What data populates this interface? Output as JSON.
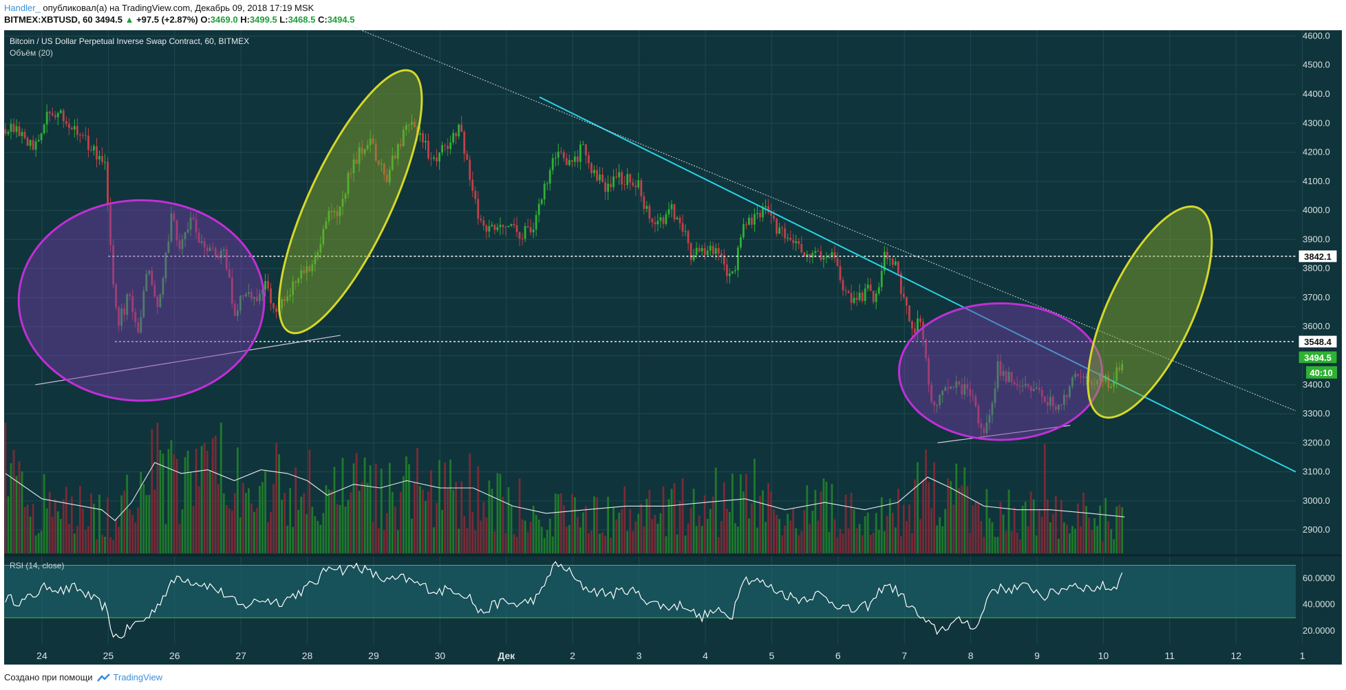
{
  "header": {
    "author": "Handler_",
    "published": "опубликовал(а) на TradingView.com, Декабрь 09, 2018 17:19 MSK",
    "symbol": "BITMEX:XBTUSD, 60",
    "last": "3494.5",
    "change_arrow": "▲",
    "change": "+97.5 (+2.87%)",
    "o_label": "O:",
    "o": "3469.0",
    "h_label": "H:",
    "h": "3499.5",
    "l_label": "L:",
    "l": "3468.5",
    "c_label": "C:",
    "c": "3494.5"
  },
  "footer": {
    "created_with": "Создано при помощи",
    "brand": "TradingView"
  },
  "colors": {
    "background": "#10343b",
    "grid": "#1d4a52",
    "up": "#2fb134",
    "down": "#c2404a",
    "trend_cyan": "#2ad4e8",
    "ellipse_purple": "#c12fd6",
    "ellipse_yellow": "#d6d82a",
    "rsi_band": "#1e6a73"
  },
  "chart_data": [
    {
      "type": "candlestick",
      "title": "Bitcoin / US Dollar Perpetual Inverse Swap Contract, 60, BITMEX",
      "volume_label": "Объём (20)",
      "x_ticks": [
        "24",
        "25",
        "26",
        "27",
        "28",
        "29",
        "30",
        "Дек",
        "2",
        "3",
        "4",
        "5",
        "6",
        "7",
        "8",
        "9",
        "10",
        "11",
        "12",
        "1"
      ],
      "y_ticks": [
        2900.0,
        3000.0,
        3100.0,
        3200.0,
        3300.0,
        3400.0,
        3500.0,
        3600.0,
        3700.0,
        3800.0,
        3900.0,
        4000.0,
        4100.0,
        4200.0,
        4300.0,
        4400.0,
        4500.0,
        4600.0
      ],
      "ylim": [
        2820,
        4620
      ],
      "xlim_days": [
        -0.57,
        18.9
      ],
      "price_path": [
        [
          -0.55,
          4280
        ],
        [
          -0.3,
          4260
        ],
        [
          -0.1,
          4220
        ],
        [
          0.1,
          4330
        ],
        [
          0.3,
          4320
        ],
        [
          0.5,
          4280
        ],
        [
          0.75,
          4210
        ],
        [
          0.95,
          4150
        ],
        [
          1.05,
          3800
        ],
        [
          1.15,
          3610
        ],
        [
          1.3,
          3700
        ],
        [
          1.45,
          3590
        ],
        [
          1.6,
          3820
        ],
        [
          1.75,
          3640
        ],
        [
          1.95,
          3980
        ],
        [
          2.1,
          3870
        ],
        [
          2.25,
          3960
        ],
        [
          2.4,
          3900
        ],
        [
          2.55,
          3860
        ],
        [
          2.75,
          3850
        ],
        [
          2.9,
          3640
        ],
        [
          3.05,
          3720
        ],
        [
          3.2,
          3680
        ],
        [
          3.35,
          3760
        ],
        [
          3.5,
          3670
        ],
        [
          3.7,
          3700
        ],
        [
          3.85,
          3760
        ],
        [
          4.0,
          3800
        ],
        [
          4.15,
          3860
        ],
        [
          4.3,
          4000
        ],
        [
          4.45,
          3980
        ],
        [
          4.6,
          4100
        ],
        [
          4.75,
          4180
        ],
        [
          4.9,
          4250
        ],
        [
          5.05,
          4180
        ],
        [
          5.2,
          4120
        ],
        [
          5.35,
          4200
        ],
        [
          5.55,
          4310
        ],
        [
          5.75,
          4240
        ],
        [
          5.9,
          4160
        ],
        [
          6.1,
          4230
        ],
        [
          6.3,
          4280
        ],
        [
          6.45,
          4120
        ],
        [
          6.6,
          3960
        ],
        [
          6.8,
          3940
        ],
        [
          7.0,
          3960
        ],
        [
          7.2,
          3920
        ],
        [
          7.4,
          3940
        ],
        [
          7.6,
          4100
        ],
        [
          7.8,
          4230
        ],
        [
          7.95,
          4160
        ],
        [
          8.15,
          4210
        ],
        [
          8.3,
          4120
        ],
        [
          8.5,
          4080
        ],
        [
          8.7,
          4120
        ],
        [
          8.85,
          4100
        ],
        [
          9.0,
          4080
        ],
        [
          9.15,
          3980
        ],
        [
          9.35,
          3960
        ],
        [
          9.5,
          4000
        ],
        [
          9.65,
          3940
        ],
        [
          9.8,
          3840
        ],
        [
          9.95,
          3860
        ],
        [
          10.15,
          3860
        ],
        [
          10.3,
          3790
        ],
        [
          10.45,
          3780
        ],
        [
          10.55,
          3960
        ],
        [
          10.75,
          3970
        ],
        [
          10.9,
          4010
        ],
        [
          11.05,
          3940
        ],
        [
          11.2,
          3910
        ],
        [
          11.4,
          3880
        ],
        [
          11.55,
          3830
        ],
        [
          11.7,
          3840
        ],
        [
          11.9,
          3860
        ],
        [
          12.0,
          3780
        ],
        [
          12.15,
          3700
        ],
        [
          12.3,
          3700
        ],
        [
          12.45,
          3720
        ],
        [
          12.6,
          3700
        ],
        [
          12.7,
          3850
        ],
        [
          12.85,
          3830
        ],
        [
          12.95,
          3720
        ],
        [
          13.1,
          3590
        ],
        [
          13.25,
          3620
        ],
        [
          13.35,
          3430
        ],
        [
          13.45,
          3320
        ],
        [
          13.6,
          3380
        ],
        [
          13.8,
          3390
        ],
        [
          14.0,
          3380
        ],
        [
          14.15,
          3230
        ],
        [
          14.3,
          3300
        ],
        [
          14.4,
          3460
        ],
        [
          14.6,
          3420
        ],
        [
          14.8,
          3390
        ],
        [
          15.0,
          3390
        ],
        [
          15.15,
          3340
        ],
        [
          15.35,
          3330
        ],
        [
          15.5,
          3400
        ],
        [
          15.65,
          3430
        ],
        [
          15.85,
          3410
        ],
        [
          16.0,
          3420
        ],
        [
          16.15,
          3400
        ],
        [
          16.25,
          3470
        ],
        [
          16.32,
          3494
        ]
      ],
      "volume_scale": [
        0,
        36
      ],
      "volume_ma_path": [
        [
          -0.55,
          22
        ],
        [
          0.0,
          15
        ],
        [
          0.9,
          12
        ],
        [
          1.1,
          9
        ],
        [
          1.35,
          14
        ],
        [
          1.7,
          25
        ],
        [
          2.1,
          22
        ],
        [
          2.5,
          23
        ],
        [
          2.9,
          20
        ],
        [
          3.3,
          23
        ],
        [
          3.7,
          22
        ],
        [
          4.0,
          20
        ],
        [
          4.3,
          16
        ],
        [
          4.7,
          19
        ],
        [
          5.1,
          18
        ],
        [
          5.5,
          20
        ],
        [
          6.0,
          18
        ],
        [
          6.5,
          18
        ],
        [
          7.1,
          13
        ],
        [
          7.6,
          11
        ],
        [
          8.2,
          12
        ],
        [
          8.8,
          13
        ],
        [
          9.4,
          13
        ],
        [
          10.0,
          14
        ],
        [
          10.6,
          15
        ],
        [
          11.2,
          12
        ],
        [
          11.8,
          14
        ],
        [
          12.4,
          12
        ],
        [
          12.9,
          14
        ],
        [
          13.35,
          21
        ],
        [
          13.7,
          18
        ],
        [
          14.2,
          13
        ],
        [
          14.7,
          12
        ],
        [
          15.2,
          12
        ],
        [
          15.8,
          11
        ],
        [
          16.32,
          10
        ]
      ],
      "annotations": {
        "resistance_line": 3842.1,
        "support_line": 3548.4,
        "resistance_label": "3842.1",
        "support_label": "3548.4",
        "last_price_label": "3494.5",
        "countdown_label": "40:10",
        "trendline_cyan": [
          [
            7.5,
            4390
          ],
          [
            18.9,
            3100
          ]
        ],
        "trendline_dotted": [
          [
            4.6,
            4640
          ],
          [
            18.9,
            3310
          ]
        ],
        "support_line_left": [
          [
            -0.1,
            3400
          ],
          [
            4.5,
            3570
          ]
        ],
        "support_line_right": [
          [
            13.5,
            3200
          ],
          [
            15.5,
            3260
          ]
        ],
        "ellipses": [
          {
            "color": "purple",
            "center": [
              1.5,
              3690
            ],
            "semi_axes_days": [
              1.85,
              345
            ]
          },
          {
            "color": "purple",
            "center": [
              14.45,
              3445
            ],
            "semi_axes_days": [
              1.53,
              235
            ]
          },
          {
            "color": "yellow",
            "center": [
              4.65,
              4030
            ],
            "semi_axes_days": [
              0.62,
              495
            ],
            "tilt": true
          },
          {
            "color": "yellow",
            "center": [
              16.7,
              3650
            ],
            "semi_axes_days": [
              0.64,
              395
            ],
            "tilt": true
          }
        ]
      }
    },
    {
      "type": "line",
      "title": "RSI (14, close)",
      "y_ticks": [
        20.0,
        40.0,
        60.0
      ],
      "y_tick_labels": [
        "20.0000",
        "40.0000",
        "60.0000"
      ],
      "band": [
        30,
        70
      ],
      "ylim": [
        10,
        76
      ],
      "rsi_path": [
        [
          -0.55,
          45
        ],
        [
          -0.3,
          42
        ],
        [
          -0.1,
          48
        ],
        [
          0.1,
          55
        ],
        [
          0.3,
          50
        ],
        [
          0.5,
          53
        ],
        [
          0.75,
          45
        ],
        [
          0.95,
          38
        ],
        [
          1.05,
          20
        ],
        [
          1.15,
          14
        ],
        [
          1.35,
          24
        ],
        [
          1.6,
          30
        ],
        [
          1.85,
          48
        ],
        [
          2.05,
          62
        ],
        [
          2.25,
          58
        ],
        [
          2.5,
          55
        ],
        [
          2.75,
          48
        ],
        [
          3.0,
          38
        ],
        [
          3.3,
          44
        ],
        [
          3.6,
          42
        ],
        [
          3.9,
          50
        ],
        [
          4.15,
          58
        ],
        [
          4.35,
          71
        ],
        [
          4.55,
          66
        ],
        [
          4.75,
          70
        ],
        [
          4.95,
          64
        ],
        [
          5.2,
          58
        ],
        [
          5.45,
          60
        ],
        [
          5.65,
          56
        ],
        [
          5.95,
          50
        ],
        [
          6.2,
          52
        ],
        [
          6.45,
          46
        ],
        [
          6.6,
          33
        ],
        [
          6.9,
          42
        ],
        [
          7.2,
          40
        ],
        [
          7.5,
          46
        ],
        [
          7.7,
          70
        ],
        [
          7.9,
          68
        ],
        [
          8.1,
          55
        ],
        [
          8.35,
          50
        ],
        [
          8.6,
          48
        ],
        [
          8.85,
          52
        ],
        [
          9.1,
          44
        ],
        [
          9.4,
          38
        ],
        [
          9.7,
          40
        ],
        [
          9.9,
          30
        ],
        [
          10.15,
          35
        ],
        [
          10.4,
          31
        ],
        [
          10.55,
          60
        ],
        [
          10.8,
          58
        ],
        [
          11.1,
          50
        ],
        [
          11.4,
          44
        ],
        [
          11.7,
          48
        ],
        [
          12.0,
          40
        ],
        [
          12.2,
          35
        ],
        [
          12.5,
          40
        ],
        [
          12.7,
          56
        ],
        [
          12.9,
          50
        ],
        [
          13.1,
          38
        ],
        [
          13.3,
          27
        ],
        [
          13.5,
          20
        ],
        [
          13.7,
          25
        ],
        [
          13.9,
          28
        ],
        [
          14.1,
          22
        ],
        [
          14.3,
          52
        ],
        [
          14.6,
          52
        ],
        [
          14.9,
          54
        ],
        [
          15.1,
          46
        ],
        [
          15.3,
          50
        ],
        [
          15.55,
          56
        ],
        [
          15.8,
          52
        ],
        [
          16.0,
          54
        ],
        [
          16.15,
          52
        ],
        [
          16.32,
          65
        ]
      ]
    }
  ]
}
